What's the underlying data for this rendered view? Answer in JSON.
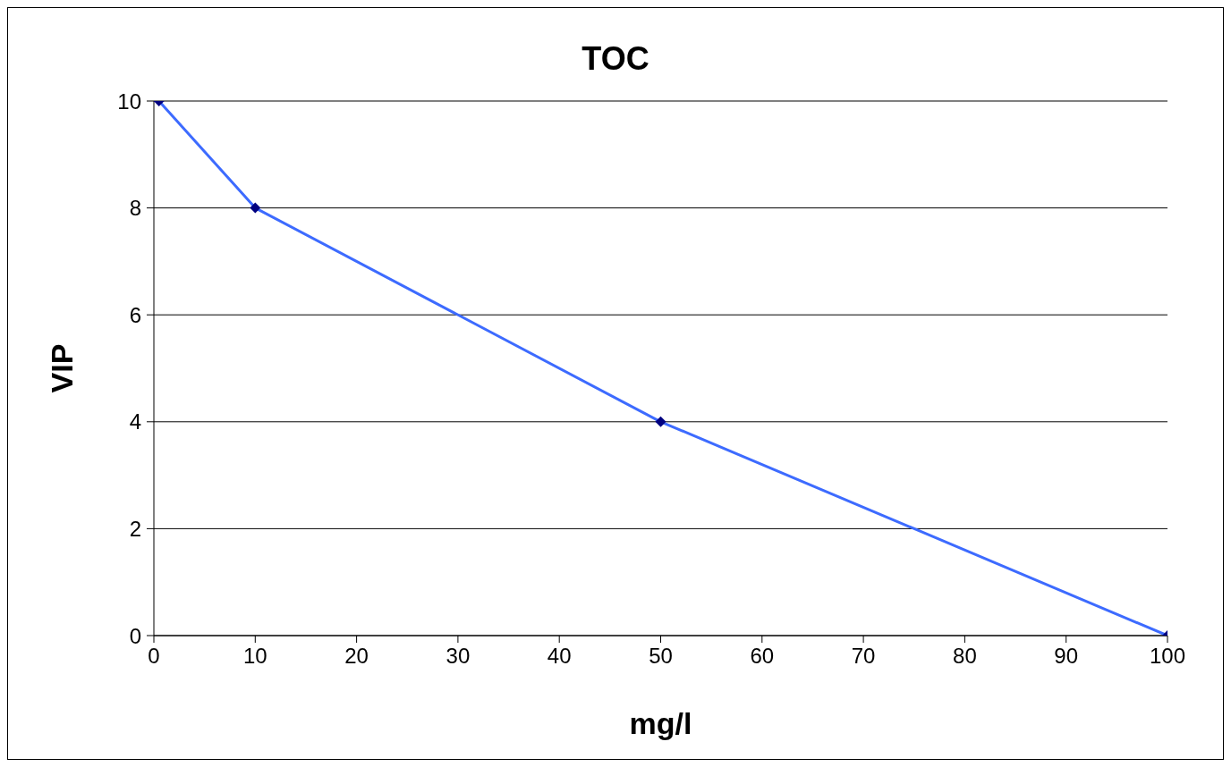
{
  "chart_data": {
    "type": "line",
    "title": "TOC",
    "xlabel": "mg/l",
    "ylabel": "VIP",
    "x": [
      0.5,
      10,
      50,
      100
    ],
    "series": [
      {
        "color": "#3d6bff",
        "values": [
          10,
          8,
          4,
          0
        ]
      }
    ],
    "xlim": [
      0,
      100
    ],
    "xticks": [
      0,
      10,
      20,
      30,
      40,
      50,
      60,
      70,
      80,
      90,
      100
    ],
    "ylim": [
      0,
      10
    ],
    "yticks": [
      0,
      2,
      4,
      6,
      8,
      10
    ],
    "grid": "y",
    "marker": "diamond",
    "line_style": "solid",
    "legend": false
  }
}
